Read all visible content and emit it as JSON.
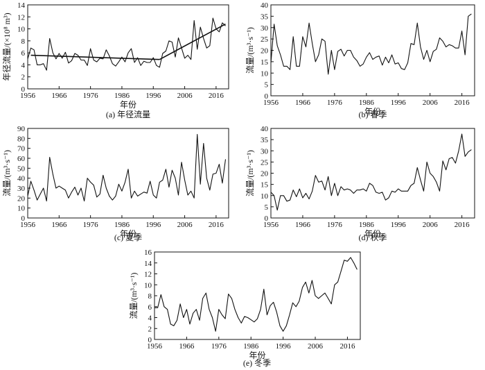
{
  "chart_data": [
    {
      "type": "line",
      "panel_id": "a",
      "caption": "(a) 年径流量",
      "xlabel": "年份",
      "ylabel": "年径流量/(×10⁸ m³)",
      "xlim": [
        1956,
        2020
      ],
      "ylim": [
        0,
        14
      ],
      "xticks": [
        1956,
        1966,
        1976,
        1986,
        1996,
        2006,
        2016
      ],
      "yticks": [
        0,
        2,
        4,
        6,
        8,
        10,
        12,
        14
      ],
      "x": [
        1956,
        1957,
        1958,
        1959,
        1960,
        1961,
        1962,
        1963,
        1964,
        1965,
        1966,
        1967,
        1968,
        1969,
        1970,
        1971,
        1972,
        1973,
        1974,
        1975,
        1976,
        1977,
        1978,
        1979,
        1980,
        1981,
        1982,
        1983,
        1984,
        1985,
        1986,
        1987,
        1988,
        1989,
        1990,
        1991,
        1992,
        1993,
        1994,
        1995,
        1996,
        1997,
        1998,
        1999,
        2000,
        2001,
        2002,
        2003,
        2004,
        2005,
        2006,
        2007,
        2008,
        2009,
        2010,
        2011,
        2012,
        2013,
        2014,
        2015,
        2016,
        2017,
        2018,
        2019
      ],
      "values": [
        5.0,
        6.8,
        6.5,
        4.0,
        4.0,
        4.2,
        3.1,
        8.4,
        6.0,
        5.0,
        5.9,
        5.1,
        6.1,
        4.3,
        4.7,
        5.9,
        5.6,
        4.8,
        4.8,
        3.9,
        6.7,
        4.8,
        4.5,
        5.1,
        5.0,
        6.5,
        5.5,
        4.2,
        3.8,
        4.5,
        5.3,
        4.5,
        6.0,
        6.7,
        4.4,
        5.2,
        3.9,
        4.6,
        4.4,
        4.4,
        5.2,
        3.9,
        3.6,
        5.9,
        6.3,
        8.0,
        7.8,
        5.3,
        8.5,
        6.8,
        5.1,
        5.6,
        4.9,
        11.4,
        6.6,
        10.3,
        8.4,
        6.8,
        7.2,
        11.8,
        10.0,
        9.5,
        11.0,
        10.5
      ],
      "trend_lines": [
        {
          "x": [
            1957,
            1998
          ],
          "y": [
            5.6,
            4.9
          ]
        },
        {
          "x": [
            1998,
            2019
          ],
          "y": [
            4.9,
            10.8
          ]
        }
      ]
    },
    {
      "type": "line",
      "panel_id": "b",
      "caption": "(b) 春季",
      "xlabel": "年份",
      "ylabel": "流量/(m³·s⁻¹)",
      "xlim": [
        1956,
        2020
      ],
      "ylim": [
        0,
        40
      ],
      "xticks": [
        1956,
        1966,
        1976,
        1986,
        1996,
        2006,
        2016
      ],
      "yticks": [
        0,
        5,
        10,
        15,
        20,
        25,
        30,
        35,
        40
      ],
      "x": [
        1956,
        1957,
        1958,
        1959,
        1960,
        1961,
        1962,
        1963,
        1964,
        1965,
        1966,
        1967,
        1968,
        1969,
        1970,
        1971,
        1972,
        1973,
        1974,
        1975,
        1976,
        1977,
        1978,
        1979,
        1980,
        1981,
        1982,
        1983,
        1984,
        1985,
        1986,
        1987,
        1988,
        1989,
        1990,
        1991,
        1992,
        1993,
        1994,
        1995,
        1996,
        1997,
        1998,
        1999,
        2000,
        2001,
        2002,
        2003,
        2004,
        2005,
        2006,
        2007,
        2008,
        2009,
        2010,
        2011,
        2012,
        2013,
        2014,
        2015,
        2016,
        2017,
        2018,
        2019
      ],
      "values": [
        14.5,
        31.5,
        22.0,
        18.0,
        13.0,
        13.0,
        11.5,
        26.0,
        13.0,
        13.0,
        26.0,
        21.5,
        32.0,
        23.0,
        15.0,
        18.0,
        25.0,
        24.0,
        9.5,
        20.0,
        11.5,
        19.5,
        20.5,
        17.5,
        20.0,
        20.0,
        17.0,
        15.5,
        13.0,
        14.0,
        17.0,
        19.0,
        16.0,
        17.0,
        17.5,
        13.5,
        17.0,
        14.5,
        18.0,
        14.0,
        14.5,
        12.0,
        11.5,
        14.5,
        23.0,
        22.5,
        32.0,
        21.5,
        16.0,
        20.0,
        15.0,
        19.5,
        20.5,
        25.5,
        24.0,
        21.5,
        22.5,
        22.0,
        21.0,
        21.0,
        28.5,
        18.0,
        35.0,
        36.0
      ]
    },
    {
      "type": "line",
      "panel_id": "c",
      "caption": "(c) 夏季",
      "xlabel": "年份",
      "ylabel": "流量/(m³·s⁻¹)",
      "xlim": [
        1956,
        2020
      ],
      "ylim": [
        0,
        90
      ],
      "xticks": [
        1956,
        1966,
        1976,
        1986,
        1996,
        2006,
        2016
      ],
      "yticks": [
        0,
        10,
        20,
        30,
        40,
        50,
        60,
        70,
        80,
        90
      ],
      "x": [
        1956,
        1957,
        1958,
        1959,
        1960,
        1961,
        1962,
        1963,
        1964,
        1965,
        1966,
        1967,
        1968,
        1969,
        1970,
        1971,
        1972,
        1973,
        1974,
        1975,
        1976,
        1977,
        1978,
        1979,
        1980,
        1981,
        1982,
        1983,
        1984,
        1985,
        1986,
        1987,
        1988,
        1989,
        1990,
        1991,
        1992,
        1993,
        1994,
        1995,
        1996,
        1997,
        1998,
        1999,
        2000,
        2001,
        2002,
        2003,
        2004,
        2005,
        2006,
        2007,
        2008,
        2009,
        2010,
        2011,
        2012,
        2013,
        2014,
        2015,
        2016,
        2017,
        2018,
        2019
      ],
      "values": [
        22,
        37,
        28,
        18,
        24,
        30,
        17,
        61,
        44,
        30,
        32,
        30,
        28,
        20,
        26,
        31,
        23,
        30,
        17,
        40,
        36,
        33,
        21,
        24,
        43,
        30,
        22,
        18,
        22,
        34,
        27,
        36,
        49,
        20,
        27,
        22,
        24,
        26,
        25,
        37,
        23,
        20,
        36,
        38,
        49,
        31,
        48,
        40,
        23,
        56,
        38,
        23,
        27,
        20,
        84,
        34,
        75,
        40,
        28,
        44,
        45,
        54,
        35,
        59
      ]
    },
    {
      "type": "line",
      "panel_id": "d",
      "caption": "(d) 秋季",
      "xlabel": "年份",
      "ylabel": "流量/(m³·s⁻¹)",
      "xlim": [
        1956,
        2020
      ],
      "ylim": [
        0,
        40
      ],
      "xticks": [
        1956,
        1966,
        1976,
        1986,
        1996,
        2006,
        2016
      ],
      "yticks": [
        0,
        5,
        10,
        15,
        20,
        25,
        30,
        35,
        40
      ],
      "x": [
        1956,
        1957,
        1958,
        1959,
        1960,
        1961,
        1962,
        1963,
        1964,
        1965,
        1966,
        1967,
        1968,
        1969,
        1970,
        1971,
        1972,
        1973,
        1974,
        1975,
        1976,
        1977,
        1978,
        1979,
        1980,
        1981,
        1982,
        1983,
        1984,
        1985,
        1986,
        1987,
        1988,
        1989,
        1990,
        1991,
        1992,
        1993,
        1994,
        1995,
        1996,
        1997,
        1998,
        1999,
        2000,
        2001,
        2002,
        2003,
        2004,
        2005,
        2006,
        2007,
        2008,
        2009,
        2010,
        2011,
        2012,
        2013,
        2014,
        2015,
        2016,
        2017,
        2018,
        2019
      ],
      "values": [
        11.5,
        10.0,
        3.5,
        10.0,
        10.0,
        7.5,
        8.0,
        12.5,
        9.5,
        13.0,
        9.0,
        11.0,
        8.5,
        12.0,
        19.0,
        16.0,
        16.5,
        12.5,
        18.5,
        10.0,
        15.5,
        10.0,
        14.0,
        12.5,
        13.0,
        12.5,
        11.0,
        12.5,
        12.5,
        13.0,
        12.0,
        15.5,
        14.5,
        11.5,
        11.0,
        11.5,
        8.0,
        9.0,
        12.0,
        11.5,
        13.0,
        12.0,
        12.0,
        12.0,
        14.5,
        15.5,
        22.5,
        17.0,
        12.0,
        25.0,
        20.0,
        18.5,
        16.0,
        12.0,
        25.5,
        21.5,
        26.5,
        27.0,
        24.5,
        30.0,
        37.5,
        27.5,
        29.5,
        30.5
      ]
    },
    {
      "type": "line",
      "panel_id": "e",
      "caption": "(e) 冬季",
      "xlabel": "年份",
      "ylabel": "流量/(m³·s⁻¹)",
      "xlim": [
        1956,
        2020
      ],
      "ylim": [
        0,
        16
      ],
      "xticks": [
        1956,
        1966,
        1976,
        1986,
        1996,
        2006,
        2016
      ],
      "yticks": [
        0,
        2,
        4,
        6,
        8,
        10,
        12,
        14,
        16
      ],
      "x": [
        1956,
        1957,
        1958,
        1959,
        1960,
        1961,
        1962,
        1963,
        1964,
        1965,
        1966,
        1967,
        1968,
        1969,
        1970,
        1971,
        1972,
        1973,
        1974,
        1975,
        1976,
        1977,
        1978,
        1979,
        1980,
        1981,
        1982,
        1983,
        1984,
        1985,
        1986,
        1987,
        1988,
        1989,
        1990,
        1991,
        1992,
        1993,
        1994,
        1995,
        1996,
        1997,
        1998,
        1999,
        2000,
        2001,
        2002,
        2003,
        2004,
        2005,
        2006,
        2007,
        2008,
        2009,
        2010,
        2011,
        2012,
        2013,
        2014,
        2015,
        2016,
        2017,
        2018,
        2019
      ],
      "values": [
        5.8,
        5.8,
        8.2,
        6.0,
        5.5,
        2.8,
        2.5,
        3.5,
        6.5,
        4.0,
        5.5,
        2.8,
        4.8,
        5.5,
        3.5,
        7.5,
        8.5,
        5.5,
        4.0,
        1.5,
        5.5,
        4.5,
        3.8,
        8.3,
        7.5,
        5.5,
        4.0,
        3.0,
        4.2,
        4.0,
        3.6,
        3.2,
        3.8,
        5.5,
        9.2,
        4.5,
        6.2,
        6.8,
        5.0,
        2.5,
        1.5,
        2.5,
        4.5,
        6.7,
        6.0,
        7.0,
        9.5,
        10.5,
        8.5,
        10.8,
        8.0,
        7.5,
        8.0,
        8.5,
        7.5,
        6.5,
        10.0,
        10.5,
        12.5,
        14.5,
        14.3,
        15.0,
        14.0,
        12.8
      ]
    }
  ]
}
